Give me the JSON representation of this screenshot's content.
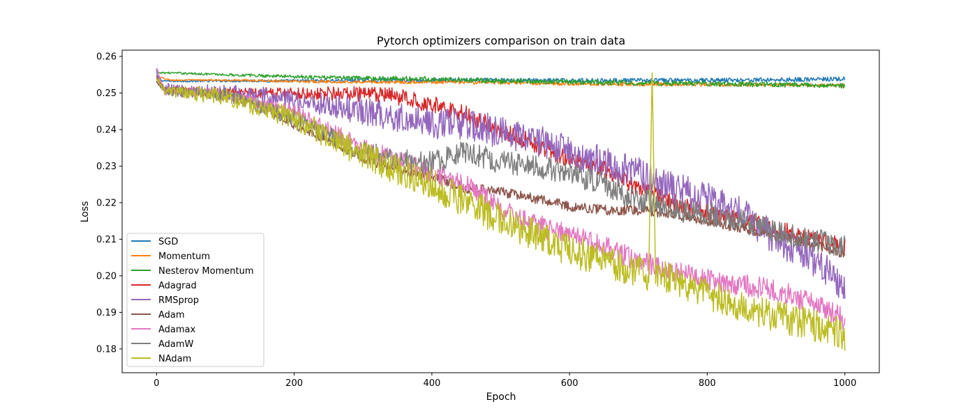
{
  "chart_data": {
    "type": "line",
    "title": "Pytorch optimizers comparison on train data",
    "xlabel": "Epoch",
    "ylabel": "Loss",
    "xlim": [
      -50,
      1050
    ],
    "ylim": [
      0.1735,
      0.2617
    ],
    "xticks": [
      0,
      200,
      400,
      600,
      800,
      1000
    ],
    "yticks": [
      0.18,
      0.19,
      0.2,
      0.21,
      0.22,
      0.23,
      0.24,
      0.25,
      0.26
    ],
    "ytick_labels": [
      "0.18",
      "0.19",
      "0.20",
      "0.21",
      "0.22",
      "0.23",
      "0.24",
      "0.25",
      "0.26"
    ],
    "xtick_labels": [
      "0",
      "200",
      "400",
      "600",
      "800",
      "1000"
    ],
    "grid": false,
    "legend_position": "lower-left",
    "series": [
      {
        "name": "SGD",
        "color": "#1f77b4",
        "points": [
          [
            0,
            0.2535
          ],
          [
            20,
            0.2532
          ],
          [
            100,
            0.2533
          ],
          [
            200,
            0.2533
          ],
          [
            300,
            0.2535
          ],
          [
            400,
            0.2534
          ],
          [
            500,
            0.2535
          ],
          [
            600,
            0.2534
          ],
          [
            700,
            0.2534
          ],
          [
            800,
            0.2535
          ],
          [
            900,
            0.2536
          ],
          [
            1000,
            0.2538
          ]
        ],
        "noise": 0.0006
      },
      {
        "name": "Momentum",
        "color": "#ff7f0e",
        "points": [
          [
            0,
            0.2545
          ],
          [
            20,
            0.2535
          ],
          [
            100,
            0.2535
          ],
          [
            200,
            0.2532
          ],
          [
            300,
            0.253
          ],
          [
            400,
            0.253
          ],
          [
            500,
            0.2528
          ],
          [
            600,
            0.2525
          ],
          [
            700,
            0.2524
          ],
          [
            800,
            0.2523
          ],
          [
            900,
            0.2522
          ],
          [
            1000,
            0.252
          ]
        ],
        "noise": 0.0005
      },
      {
        "name": "Nesterov Momentum",
        "color": "#2ca02c",
        "points": [
          [
            0,
            0.2555
          ],
          [
            20,
            0.2555
          ],
          [
            100,
            0.255
          ],
          [
            200,
            0.2545
          ],
          [
            300,
            0.254
          ],
          [
            400,
            0.2538
          ],
          [
            500,
            0.2533
          ],
          [
            600,
            0.253
          ],
          [
            700,
            0.2527
          ],
          [
            800,
            0.2525
          ],
          [
            900,
            0.2523
          ],
          [
            1000,
            0.252
          ]
        ],
        "noise": 0.0007
      },
      {
        "name": "Adagrad",
        "color": "#d62728",
        "points": [
          [
            0,
            0.2545
          ],
          [
            10,
            0.251
          ],
          [
            100,
            0.2502
          ],
          [
            200,
            0.25
          ],
          [
            300,
            0.2497
          ],
          [
            350,
            0.249
          ],
          [
            400,
            0.247
          ],
          [
            450,
            0.244
          ],
          [
            500,
            0.24
          ],
          [
            550,
            0.236
          ],
          [
            600,
            0.232
          ],
          [
            650,
            0.229
          ],
          [
            700,
            0.224
          ],
          [
            750,
            0.22
          ],
          [
            800,
            0.217
          ],
          [
            850,
            0.215
          ],
          [
            900,
            0.213
          ],
          [
            950,
            0.21
          ],
          [
            1000,
            0.208
          ]
        ],
        "noise": 0.0025
      },
      {
        "name": "RMSprop",
        "color": "#9467bd",
        "points": [
          [
            0,
            0.256
          ],
          [
            10,
            0.251
          ],
          [
            100,
            0.25
          ],
          [
            200,
            0.248
          ],
          [
            300,
            0.245
          ],
          [
            400,
            0.242
          ],
          [
            450,
            0.241
          ],
          [
            500,
            0.2395
          ],
          [
            550,
            0.237
          ],
          [
            600,
            0.234
          ],
          [
            650,
            0.231
          ],
          [
            700,
            0.228
          ],
          [
            750,
            0.224
          ],
          [
            800,
            0.221
          ],
          [
            850,
            0.217
          ],
          [
            900,
            0.21
          ],
          [
            950,
            0.205
          ],
          [
            1000,
            0.197
          ]
        ],
        "noise": 0.0045
      },
      {
        "name": "Adam",
        "color": "#8c564b",
        "points": [
          [
            0,
            0.253
          ],
          [
            10,
            0.2505
          ],
          [
            100,
            0.2495
          ],
          [
            150,
            0.247
          ],
          [
            200,
            0.241
          ],
          [
            250,
            0.237
          ],
          [
            300,
            0.232
          ],
          [
            350,
            0.229
          ],
          [
            400,
            0.227
          ],
          [
            450,
            0.224
          ],
          [
            500,
            0.223
          ],
          [
            550,
            0.221
          ],
          [
            600,
            0.219
          ],
          [
            650,
            0.218
          ],
          [
            700,
            0.218
          ],
          [
            750,
            0.217
          ],
          [
            800,
            0.215
          ],
          [
            850,
            0.213
          ],
          [
            900,
            0.211
          ],
          [
            950,
            0.209
          ],
          [
            1000,
            0.206
          ]
        ],
        "noise": 0.0014
      },
      {
        "name": "Adamax",
        "color": "#e377c2",
        "points": [
          [
            0,
            0.257
          ],
          [
            10,
            0.2505
          ],
          [
            100,
            0.2495
          ],
          [
            200,
            0.245
          ],
          [
            300,
            0.235
          ],
          [
            400,
            0.228
          ],
          [
            450,
            0.225
          ],
          [
            500,
            0.218
          ],
          [
            550,
            0.214
          ],
          [
            600,
            0.211
          ],
          [
            650,
            0.208
          ],
          [
            700,
            0.204
          ],
          [
            750,
            0.201
          ],
          [
            800,
            0.199
          ],
          [
            850,
            0.1975
          ],
          [
            900,
            0.196
          ],
          [
            950,
            0.193
          ],
          [
            1000,
            0.188
          ]
        ],
        "noise": 0.003
      },
      {
        "name": "AdamW",
        "color": "#7f7f7f",
        "points": [
          [
            0,
            0.2545
          ],
          [
            10,
            0.2505
          ],
          [
            100,
            0.2495
          ],
          [
            200,
            0.243
          ],
          [
            300,
            0.234
          ],
          [
            350,
            0.232
          ],
          [
            400,
            0.231
          ],
          [
            450,
            0.234
          ],
          [
            500,
            0.231
          ],
          [
            550,
            0.23
          ],
          [
            600,
            0.228
          ],
          [
            650,
            0.225
          ],
          [
            700,
            0.221
          ],
          [
            750,
            0.218
          ],
          [
            800,
            0.217
          ],
          [
            850,
            0.215
          ],
          [
            900,
            0.212
          ],
          [
            950,
            0.21
          ],
          [
            1000,
            0.208
          ]
        ],
        "noise": 0.0032
      },
      {
        "name": "NAdam",
        "color": "#bcbd22",
        "points": [
          [
            0,
            0.2545
          ],
          [
            10,
            0.2505
          ],
          [
            100,
            0.249
          ],
          [
            200,
            0.243
          ],
          [
            300,
            0.233
          ],
          [
            350,
            0.229
          ],
          [
            400,
            0.225
          ],
          [
            450,
            0.22
          ],
          [
            500,
            0.215
          ],
          [
            550,
            0.211
          ],
          [
            600,
            0.207
          ],
          [
            650,
            0.204
          ],
          [
            700,
            0.201
          ],
          [
            750,
            0.199
          ],
          [
            800,
            0.195
          ],
          [
            850,
            0.192
          ],
          [
            900,
            0.189
          ],
          [
            950,
            0.187
          ],
          [
            1000,
            0.184
          ]
        ],
        "noise": 0.0045,
        "spike": {
          "x": 720,
          "y": 0.2555
        }
      }
    ]
  }
}
